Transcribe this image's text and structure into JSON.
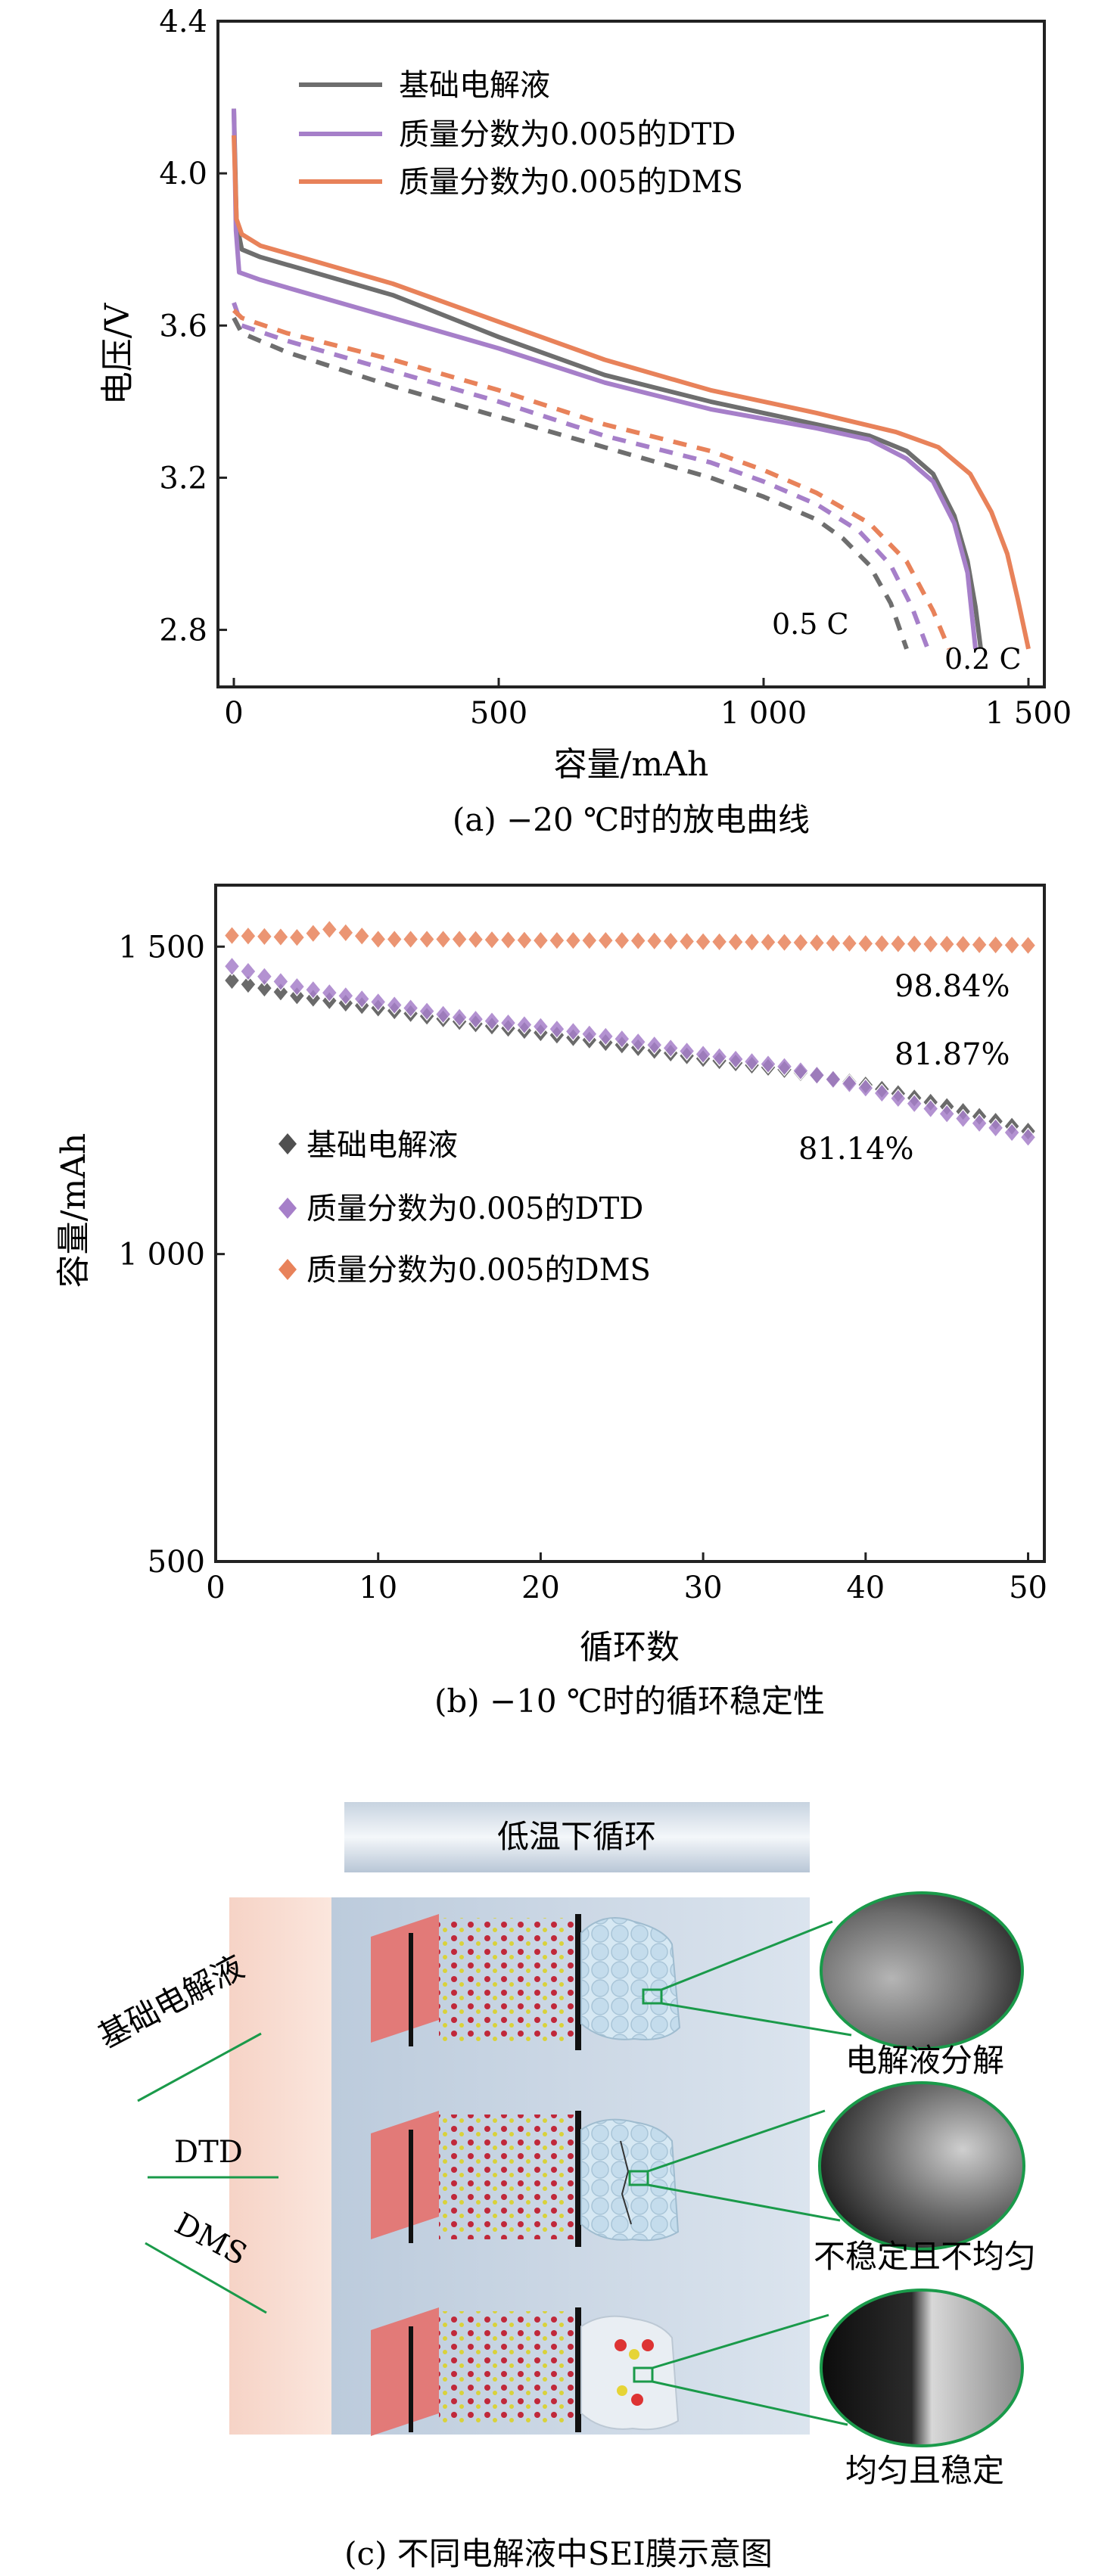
{
  "chart_data": [
    {
      "type": "line",
      "title": "",
      "caption": "(a) −20 ℃时的放电曲线",
      "xlabel": "容量/mAh",
      "ylabel": "电压/V",
      "xlim": [
        -30,
        1530
      ],
      "ylim": [
        2.65,
        4.4
      ],
      "xticks": [
        0,
        500,
        1000,
        1500
      ],
      "xtick_labels": [
        "0",
        "500",
        "1 000",
        "1 500"
      ],
      "yticks": [
        2.8,
        3.2,
        3.6,
        4.0,
        4.4
      ],
      "ytick_labels": [
        "2.8",
        "3.2",
        "3.6",
        "4.0",
        "4.4"
      ],
      "legend": [
        "基础电解液",
        "质量分数为0.005的DTD",
        "质量分数为0.005的DMS"
      ],
      "colors": [
        "#6e6e6e",
        "#a67fc9",
        "#e8825a"
      ],
      "annotations": [
        "0.5 C",
        "0.2 C"
      ],
      "series": [
        {
          "name": "基础电解液",
          "rate": "0.2 C",
          "style": "solid",
          "x": [
            0,
            5,
            15,
            50,
            150,
            300,
            500,
            700,
            900,
            1100,
            1200,
            1270,
            1320,
            1360,
            1385,
            1400,
            1410
          ],
          "y": [
            4.17,
            3.87,
            3.8,
            3.78,
            3.74,
            3.68,
            3.57,
            3.47,
            3.4,
            3.34,
            3.31,
            3.27,
            3.21,
            3.1,
            2.98,
            2.86,
            2.75
          ]
        },
        {
          "name": "质量分数为0.005的DTD",
          "rate": "0.2 C",
          "style": "solid",
          "x": [
            0,
            4,
            10,
            50,
            150,
            300,
            500,
            700,
            900,
            1100,
            1200,
            1270,
            1320,
            1360,
            1385,
            1400
          ],
          "y": [
            4.17,
            3.85,
            3.74,
            3.72,
            3.68,
            3.62,
            3.54,
            3.45,
            3.38,
            3.33,
            3.3,
            3.25,
            3.19,
            3.08,
            2.95,
            2.75
          ]
        },
        {
          "name": "质量分数为0.005的DMS",
          "rate": "0.2 C",
          "style": "solid",
          "x": [
            0,
            5,
            15,
            50,
            150,
            300,
            500,
            700,
            900,
            1100,
            1250,
            1330,
            1390,
            1430,
            1460,
            1480,
            1500
          ],
          "y": [
            4.1,
            3.88,
            3.84,
            3.81,
            3.77,
            3.71,
            3.61,
            3.51,
            3.43,
            3.37,
            3.32,
            3.28,
            3.21,
            3.11,
            3.0,
            2.88,
            2.75
          ]
        },
        {
          "name": "基础电解液",
          "rate": "0.5 C",
          "style": "dashed",
          "x": [
            0,
            15,
            100,
            300,
            500,
            700,
            900,
            1000,
            1100,
            1150,
            1200,
            1240,
            1270
          ],
          "y": [
            3.62,
            3.58,
            3.53,
            3.44,
            3.36,
            3.28,
            3.2,
            3.15,
            3.09,
            3.04,
            2.97,
            2.87,
            2.75
          ]
        },
        {
          "name": "质量分数为0.005的DTD",
          "rate": "0.5 C",
          "style": "dashed",
          "x": [
            0,
            15,
            100,
            300,
            500,
            700,
            900,
            1000,
            1100,
            1180,
            1240,
            1280,
            1310
          ],
          "y": [
            3.66,
            3.6,
            3.56,
            3.48,
            3.4,
            3.31,
            3.24,
            3.19,
            3.13,
            3.06,
            2.97,
            2.86,
            2.75
          ]
        },
        {
          "name": "质量分数为0.005的DMS",
          "rate": "0.5 C",
          "style": "dashed",
          "x": [
            0,
            15,
            100,
            300,
            500,
            700,
            900,
            1000,
            1100,
            1200,
            1270,
            1320,
            1350
          ],
          "y": [
            3.64,
            3.62,
            3.58,
            3.51,
            3.43,
            3.34,
            3.27,
            3.22,
            3.16,
            3.08,
            2.98,
            2.85,
            2.75
          ]
        }
      ]
    },
    {
      "type": "scatter",
      "title": "",
      "caption": "(b) −10 ℃时的循环稳定性",
      "xlabel": "循环数",
      "ylabel": "容量/mAh",
      "xlim": [
        0,
        51
      ],
      "ylim": [
        500,
        1600
      ],
      "xticks": [
        0,
        10,
        20,
        30,
        40,
        50
      ],
      "yticks": [
        500,
        1000,
        1500
      ],
      "ytick_labels": [
        "500",
        "1 000",
        "1 500"
      ],
      "legend": [
        "基础电解液",
        "质量分数为0.005的DTD",
        "质量分数为0.005的DMS"
      ],
      "colors": [
        "#505050",
        "#a67fc9",
        "#e8825a"
      ],
      "annotations": [
        "98.84%",
        "81.87%",
        "81.14%"
      ],
      "series": [
        {
          "name": "基础电解液",
          "x": [
            1,
            5,
            10,
            15,
            20,
            25,
            30,
            35,
            40,
            45,
            50
          ],
          "y": [
            1445,
            1420,
            1400,
            1378,
            1360,
            1340,
            1318,
            1300,
            1275,
            1240,
            1200
          ]
        },
        {
          "name": "质量分数为0.005的DTD",
          "x": [
            1,
            5,
            10,
            15,
            20,
            25,
            30,
            35,
            40,
            45,
            50
          ],
          "y": [
            1468,
            1435,
            1410,
            1385,
            1370,
            1350,
            1325,
            1305,
            1270,
            1228,
            1190
          ]
        },
        {
          "name": "质量分数为0.005的DMS",
          "x": [
            1,
            5,
            7,
            10,
            15,
            20,
            25,
            30,
            35,
            40,
            45,
            50
          ],
          "y": [
            1518,
            1515,
            1528,
            1512,
            1512,
            1510,
            1510,
            1508,
            1507,
            1505,
            1504,
            1502
          ]
        }
      ]
    }
  ],
  "diagram": {
    "header": "低温下循环",
    "rows": [
      {
        "label": "基础电解液",
        "result": "电解液分解"
      },
      {
        "label": "DTD",
        "result": "不稳定且不均匀"
      },
      {
        "label": "DMS",
        "result": "均匀且稳定"
      }
    ],
    "caption": "(c) 不同电解液中SEI膜示意图"
  }
}
